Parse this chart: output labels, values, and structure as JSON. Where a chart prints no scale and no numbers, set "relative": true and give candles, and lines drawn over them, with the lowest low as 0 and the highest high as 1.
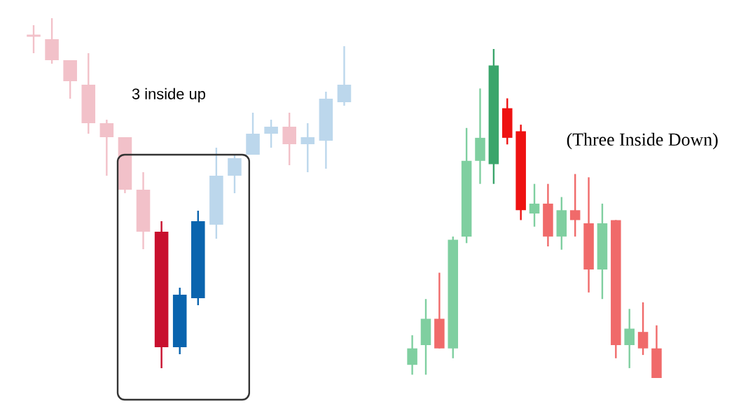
{
  "chart_data": [
    {
      "type": "candlestick",
      "relative": true,
      "annotations": [
        "3 inside up"
      ],
      "categories": [
        null,
        null,
        null,
        null,
        null,
        null,
        null,
        null,
        null,
        null,
        null,
        null,
        null,
        null,
        null,
        null,
        null,
        null
      ],
      "ohlc": [
        [
          0.95,
          0.98,
          0.9,
          0.95
        ],
        [
          0.94,
          1.0,
          0.87,
          0.88
        ],
        [
          0.88,
          0.88,
          0.77,
          0.82
        ],
        [
          0.81,
          0.9,
          0.67,
          0.7
        ],
        [
          0.7,
          0.71,
          0.55,
          0.66
        ],
        [
          0.66,
          0.66,
          0.5,
          0.51
        ],
        [
          0.51,
          0.56,
          0.34,
          0.39
        ],
        [
          0.39,
          0.42,
          0.0,
          0.06
        ],
        [
          0.06,
          0.23,
          0.04,
          0.21
        ],
        [
          0.2,
          0.45,
          0.18,
          0.42
        ],
        [
          0.41,
          0.63,
          0.37,
          0.55
        ],
        [
          0.55,
          0.61,
          0.5,
          0.6
        ],
        [
          0.61,
          0.73,
          0.61,
          0.67
        ],
        [
          0.67,
          0.71,
          0.63,
          0.69
        ],
        [
          0.69,
          0.73,
          0.58,
          0.64
        ],
        [
          0.64,
          0.7,
          0.56,
          0.66
        ],
        [
          0.65,
          0.79,
          0.57,
          0.77
        ],
        [
          0.76,
          0.92,
          0.75,
          0.81
        ]
      ],
      "colors": [
        "#f2c1c9",
        "#f2c1c9",
        "#f2c1c9",
        "#f2c1c9",
        "#f2c1c9",
        "#f2c1c9",
        "#f2c1c9",
        "#c8102e",
        "#0a64ae",
        "#0a64ae",
        "#bcd7ec",
        "#bcd7ec",
        "#bcd7ec",
        "#bcd7ec",
        "#f2c1c9",
        "#bcd7ec",
        "#bcd7ec",
        "#bcd7ec"
      ]
    },
    {
      "type": "candlestick",
      "relative": true,
      "annotations": [
        "(Three Inside Down)"
      ],
      "categories": [
        null,
        null,
        null,
        null,
        null,
        null,
        null,
        null,
        null,
        null,
        null,
        null,
        null,
        null,
        null,
        null,
        null,
        null,
        null
      ],
      "ohlc": [
        [
          0.04,
          0.13,
          0.01,
          0.09
        ],
        [
          0.1,
          0.24,
          0.01,
          0.18
        ],
        [
          0.18,
          0.32,
          0.09,
          0.09
        ],
        [
          0.09,
          0.43,
          0.06,
          0.42
        ],
        [
          0.43,
          0.76,
          0.41,
          0.66
        ],
        [
          0.66,
          0.88,
          0.59,
          0.73
        ],
        [
          0.65,
          1.0,
          0.59,
          0.95
        ],
        [
          0.82,
          0.85,
          0.71,
          0.73
        ],
        [
          0.75,
          0.77,
          0.48,
          0.51
        ],
        [
          0.5,
          0.59,
          0.46,
          0.53
        ],
        [
          0.53,
          0.59,
          0.4,
          0.43
        ],
        [
          0.43,
          0.55,
          0.39,
          0.51
        ],
        [
          0.51,
          0.62,
          0.43,
          0.48
        ],
        [
          0.47,
          0.61,
          0.26,
          0.33
        ],
        [
          0.33,
          0.53,
          0.24,
          0.47
        ],
        [
          0.48,
          0.48,
          0.06,
          0.1
        ],
        [
          0.1,
          0.21,
          0.03,
          0.15
        ],
        [
          0.14,
          0.23,
          0.07,
          0.09
        ],
        [
          0.09,
          0.16,
          0.0,
          0.0
        ]
      ],
      "colors": [
        "#7fcfa0",
        "#7fcfa0",
        "#f06a6a",
        "#7fcfa0",
        "#7fcfa0",
        "#7fcfa0",
        "#3aa56b",
        "#ee1111",
        "#ee1111",
        "#7fcfa0",
        "#f06a6a",
        "#7fcfa0",
        "#f06a6a",
        "#f06a6a",
        "#7fcfa0",
        "#f06a6a",
        "#7fcfa0",
        "#f06a6a",
        "#f06a6a"
      ]
    }
  ]
}
